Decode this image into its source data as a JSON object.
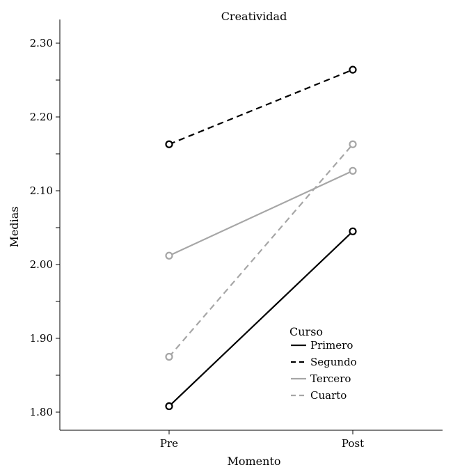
{
  "chart_data": {
    "type": "line",
    "title": "Creatividad",
    "xlabel": "Momento",
    "ylabel": "Medias",
    "categories": [
      "Pre",
      "Post"
    ],
    "ylim": [
      1.78,
      2.33
    ],
    "yticks": [
      {
        "value": 1.8,
        "label": "1.80"
      },
      {
        "value": 1.9,
        "label": "1.90"
      },
      {
        "value": 2.0,
        "label": "2.00"
      },
      {
        "value": 2.1,
        "label": "2.10"
      },
      {
        "value": 2.2,
        "label": "2.20"
      },
      {
        "value": 2.3,
        "label": "2.30"
      }
    ],
    "legend": {
      "title": "Curso",
      "position": "bottom-right"
    },
    "series": [
      {
        "name": "Primero",
        "values": [
          1.808,
          2.045
        ],
        "color": "#000000",
        "dash": "solid"
      },
      {
        "name": "Segundo",
        "values": [
          2.163,
          2.264
        ],
        "color": "#000000",
        "dash": "dashed"
      },
      {
        "name": "Tercero",
        "values": [
          2.012,
          2.127
        ],
        "color": "#a6a6a6",
        "dash": "solid"
      },
      {
        "name": "Cuarto",
        "values": [
          1.875,
          2.163
        ],
        "color": "#a6a6a6",
        "dash": "dashed"
      }
    ]
  }
}
